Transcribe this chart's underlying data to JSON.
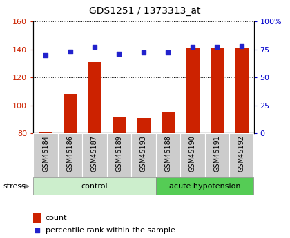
{
  "title": "GDS1251 / 1373313_at",
  "samples": [
    "GSM45184",
    "GSM45186",
    "GSM45187",
    "GSM45189",
    "GSM45193",
    "GSM45188",
    "GSM45190",
    "GSM45191",
    "GSM45192"
  ],
  "counts": [
    81,
    108,
    131,
    92,
    91,
    95,
    141,
    141,
    141
  ],
  "percentile_ranks": [
    70,
    73,
    77,
    71,
    72,
    72,
    77,
    77,
    78
  ],
  "n_control": 5,
  "n_hypotension": 4,
  "bar_color": "#cc2200",
  "dot_color": "#2222cc",
  "ylim_left": [
    80,
    160
  ],
  "ylim_right": [
    0,
    100
  ],
  "yticks_left": [
    80,
    100,
    120,
    140,
    160
  ],
  "yticks_right": [
    0,
    25,
    50,
    75,
    100
  ],
  "yticklabels_right": [
    "0",
    "25",
    "50",
    "75",
    "100%"
  ],
  "ylabel_left_color": "#cc2200",
  "ylabel_right_color": "#0000cc",
  "title_color": "#000000",
  "grid_color": "#000000",
  "xticklabel_bg": "#cccccc",
  "control_color_light": "#d4f5d4",
  "control_color_dark": "#7dcc7d",
  "hypo_color": "#55cc55",
  "legend_count_label": "count",
  "legend_percentile_label": "percentile rank within the sample",
  "stress_label": "stress"
}
